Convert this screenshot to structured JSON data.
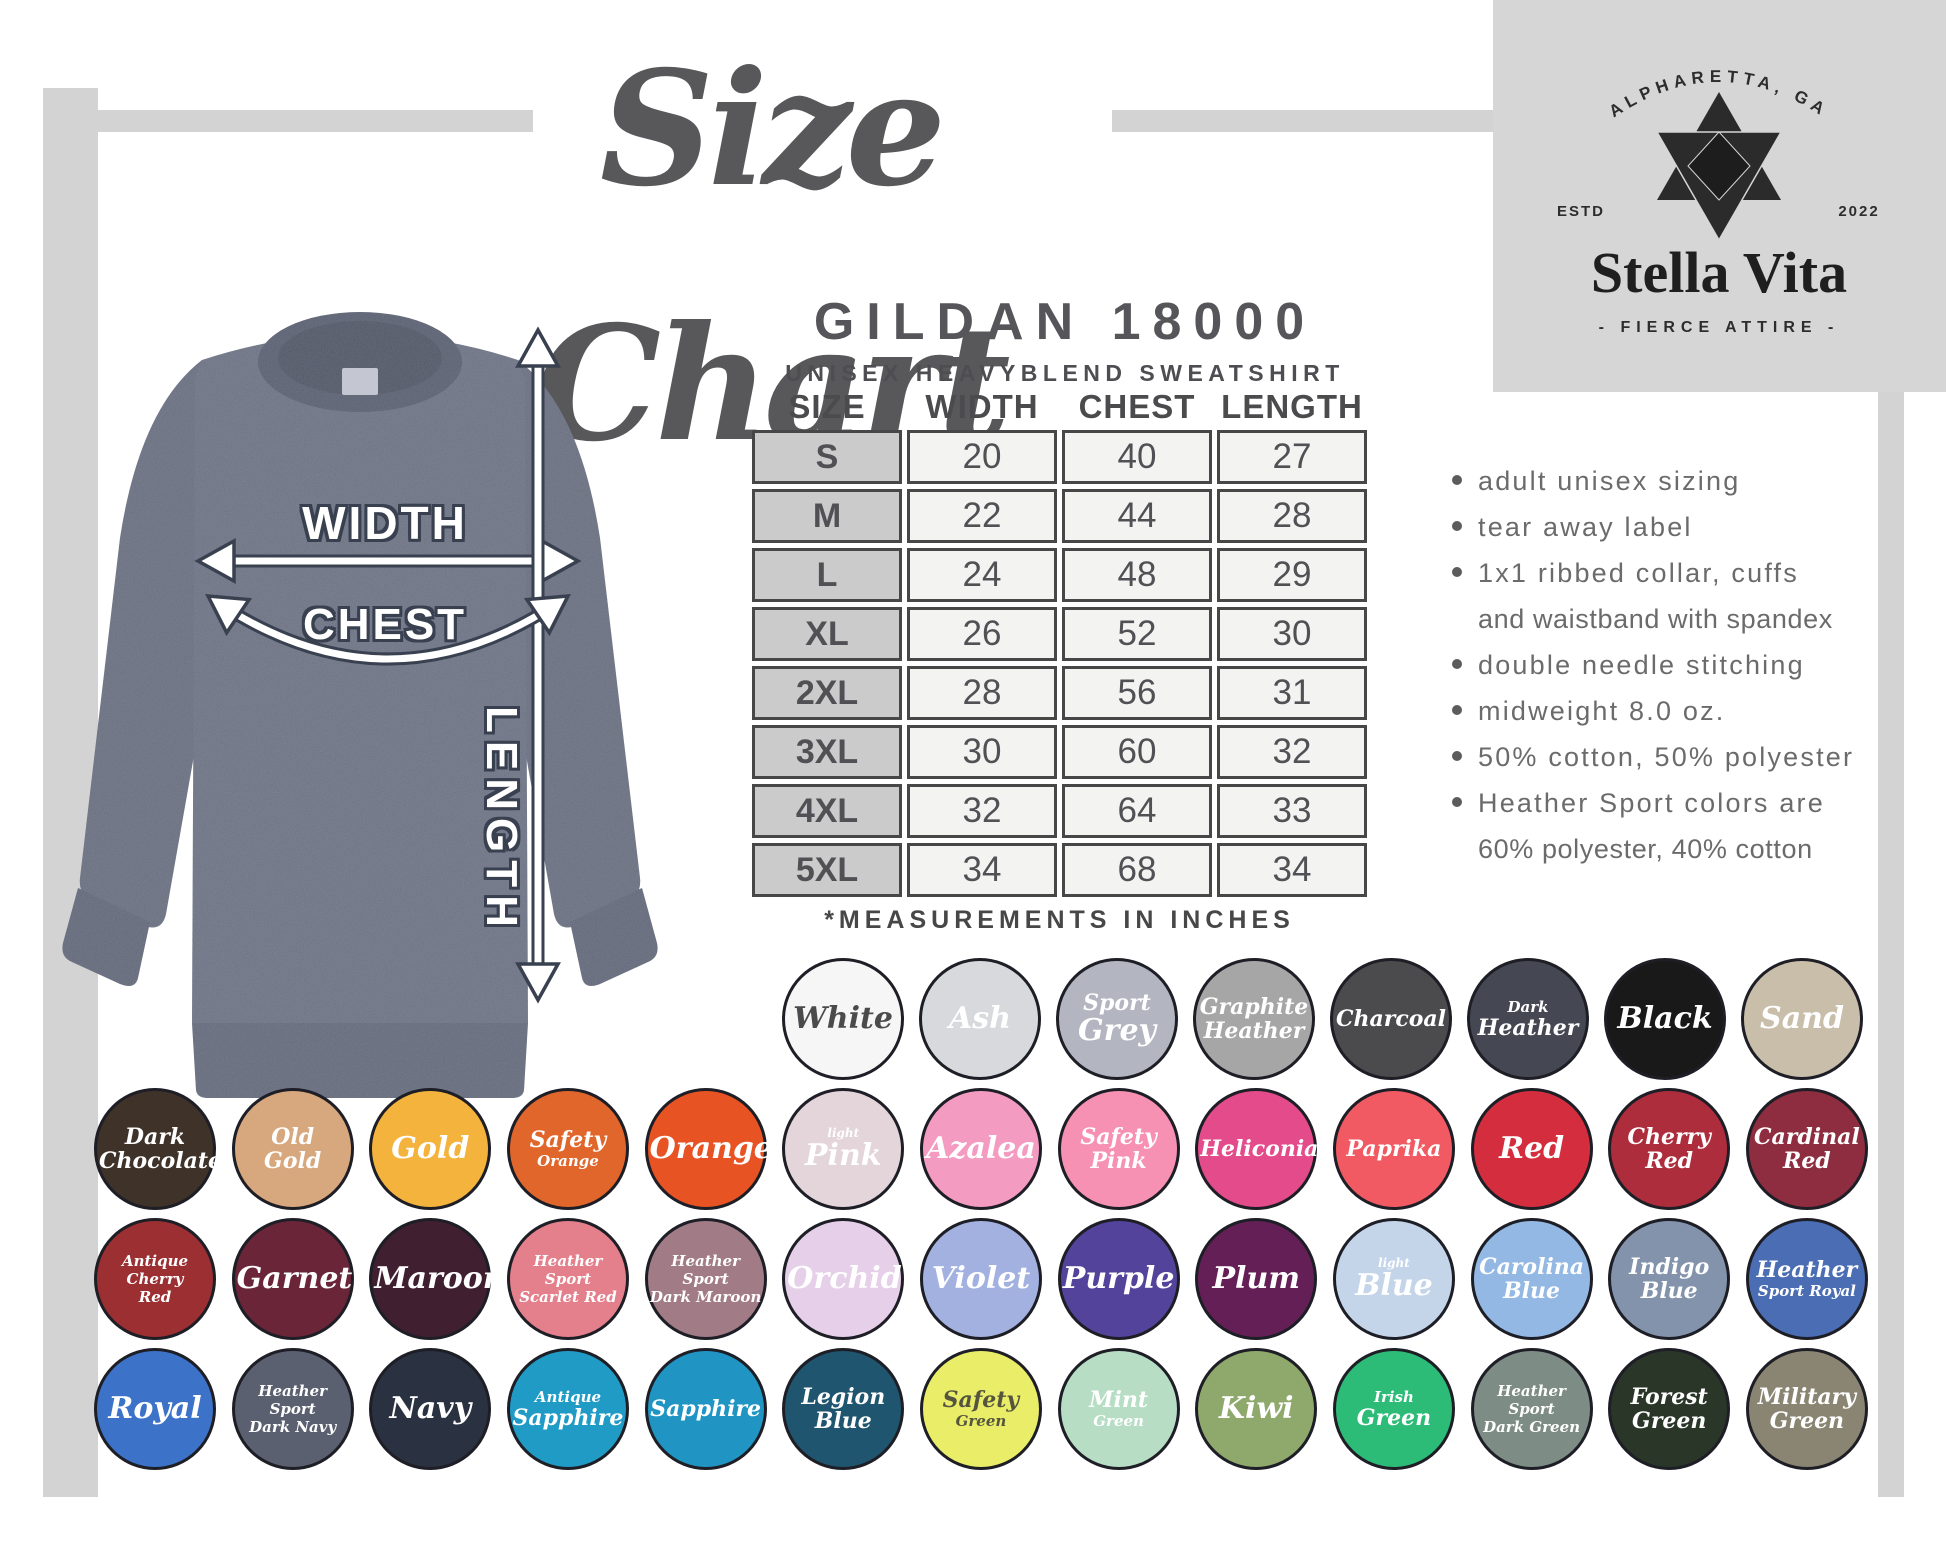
{
  "title": "Size Chart",
  "logo": {
    "location": "ALPHARETTA, GA",
    "estd_label": "ESTD",
    "estd_year": "2022",
    "brand": "Stella Vita",
    "tagline": "- FIERCE ATTIRE -"
  },
  "product": {
    "name": "GILDAN 18000",
    "description": "UNISEX HEAVYBLEND SWEATSHIRT"
  },
  "diagram": {
    "width_label": "WIDTH",
    "chest_label": "CHEST",
    "length_label": "LENGTH"
  },
  "size_table": {
    "columns": [
      "SIZE",
      "WIDTH",
      "CHEST",
      "LENGTH"
    ],
    "rows": [
      [
        "S",
        "20",
        "40",
        "27"
      ],
      [
        "M",
        "22",
        "44",
        "28"
      ],
      [
        "L",
        "24",
        "48",
        "29"
      ],
      [
        "XL",
        "26",
        "52",
        "30"
      ],
      [
        "2XL",
        "28",
        "56",
        "31"
      ],
      [
        "3XL",
        "30",
        "60",
        "32"
      ],
      [
        "4XL",
        "32",
        "64",
        "33"
      ],
      [
        "5XL",
        "34",
        "68",
        "34"
      ]
    ],
    "note": "*MEASUREMENTS IN INCHES"
  },
  "features": [
    {
      "lines": [
        "adult unisex sizing"
      ]
    },
    {
      "lines": [
        "tear away label"
      ]
    },
    {
      "lines": [
        "1x1 ribbed collar, cuffs",
        "and waistband with spandex"
      ]
    },
    {
      "lines": [
        "double needle stitching"
      ]
    },
    {
      "lines": [
        "midweight 8.0 oz."
      ]
    },
    {
      "lines": [
        "50% cotton, 50% polyester"
      ]
    },
    {
      "lines": [
        "Heather Sport colors are",
        "60% polyester, 40% cotton"
      ]
    }
  ],
  "colors": {
    "rows": [
      [
        {
          "name": "White",
          "bg": "#f6f6f6",
          "text": "#4b4b4b",
          "lines": [
            [
              "White",
              "lg"
            ]
          ]
        },
        {
          "name": "Ash",
          "bg": "#d7d9dd",
          "text": "#ffffff",
          "lines": [
            [
              "Ash",
              "lg"
            ]
          ]
        },
        {
          "name": "Sport Grey",
          "bg": "#b3b5c0",
          "text": "#ffffff",
          "lines": [
            [
              "Sport",
              "md"
            ],
            [
              "Grey",
              "lg"
            ]
          ]
        },
        {
          "name": "Graphite Heather",
          "bg": "#a6a6a6",
          "text": "#ffffff",
          "lines": [
            [
              "Graphite",
              "md"
            ],
            [
              "Heather",
              "md"
            ]
          ]
        },
        {
          "name": "Charcoal",
          "bg": "#4b4b4d",
          "text": "#ffffff",
          "lines": [
            [
              "Charcoal",
              "md"
            ]
          ]
        },
        {
          "name": "Dark Heather",
          "bg": "#454852",
          "text": "#ffffff",
          "lines": [
            [
              "Dark",
              "sm"
            ],
            [
              "Heather",
              "md"
            ]
          ]
        },
        {
          "name": "Black",
          "bg": "#191919",
          "text": "#ffffff",
          "lines": [
            [
              "Black",
              "lg"
            ]
          ]
        },
        {
          "name": "Sand",
          "bg": "#c9beaa",
          "text": "#ffffff",
          "lines": [
            [
              "Sand",
              "lg"
            ]
          ]
        }
      ],
      [
        {
          "name": "Dark Chocolate",
          "bg": "#3e3229",
          "text": "#ffffff",
          "lines": [
            [
              "Dark",
              "md"
            ],
            [
              "Chocolate",
              "md"
            ]
          ]
        },
        {
          "name": "Old Gold",
          "bg": "#d7a77d",
          "text": "#ffffff",
          "lines": [
            [
              "Old",
              "md"
            ],
            [
              "Gold",
              "md"
            ]
          ]
        },
        {
          "name": "Gold",
          "bg": "#f3b33d",
          "text": "#ffffff",
          "lines": [
            [
              "Gold",
              "lg"
            ]
          ]
        },
        {
          "name": "Safety Orange",
          "bg": "#e1662b",
          "text": "#ffffff",
          "lines": [
            [
              "Safety",
              "md"
            ],
            [
              "Orange",
              "sm"
            ]
          ]
        },
        {
          "name": "Orange",
          "bg": "#e75322",
          "text": "#ffffff",
          "lines": [
            [
              "Orange",
              "lg"
            ]
          ]
        },
        {
          "name": "Light Pink",
          "bg": "#e3d5d9",
          "text": "#ffffff",
          "lines": [
            [
              "light",
              "xs"
            ],
            [
              "Pink",
              "lg"
            ]
          ]
        },
        {
          "name": "Azalea",
          "bg": "#f49bc1",
          "text": "#ffffff",
          "lines": [
            [
              "Azalea",
              "lg"
            ]
          ]
        },
        {
          "name": "Safety Pink",
          "bg": "#f791b3",
          "text": "#ffffff",
          "lines": [
            [
              "Safety",
              "md"
            ],
            [
              "Pink",
              "md"
            ]
          ]
        },
        {
          "name": "Heliconia",
          "bg": "#e34b8b",
          "text": "#ffffff",
          "lines": [
            [
              "Heliconia",
              "md"
            ]
          ]
        },
        {
          "name": "Paprika",
          "bg": "#f15a62",
          "text": "#ffffff",
          "lines": [
            [
              "Paprika",
              "md"
            ]
          ]
        },
        {
          "name": "Red",
          "bg": "#d42e3e",
          "text": "#ffffff",
          "lines": [
            [
              "Red",
              "lg"
            ]
          ]
        },
        {
          "name": "Cherry Red",
          "bg": "#ae2d3d",
          "text": "#ffffff",
          "lines": [
            [
              "Cherry",
              "md"
            ],
            [
              "Red",
              "md"
            ]
          ]
        },
        {
          "name": "Cardinal Red",
          "bg": "#8d2d3f",
          "text": "#ffffff",
          "lines": [
            [
              "Cardinal",
              "md"
            ],
            [
              "Red",
              "md"
            ]
          ]
        }
      ],
      [
        {
          "name": "Antique Cherry Red",
          "bg": "#9b2f32",
          "text": "#ffffff",
          "lines": [
            [
              "Antique",
              "sm"
            ],
            [
              "Cherry",
              "sm"
            ],
            [
              "Red",
              "sm"
            ]
          ]
        },
        {
          "name": "Garnet",
          "bg": "#6a2538",
          "text": "#ffffff",
          "lines": [
            [
              "Garnet",
              "lg"
            ]
          ]
        },
        {
          "name": "Maroon",
          "bg": "#402030",
          "text": "#ffffff",
          "lines": [
            [
              "Maroon",
              "lg"
            ]
          ]
        },
        {
          "name": "Heather Sport Scarlet Red",
          "bg": "#e4808c",
          "text": "#ffffff",
          "lines": [
            [
              "Heather Sport",
              "sm"
            ],
            [
              "Scarlet Red",
              "sm"
            ]
          ]
        },
        {
          "name": "Heather Sport Dark Maroon",
          "bg": "#a17b86",
          "text": "#ffffff",
          "lines": [
            [
              "Heather Sport",
              "sm"
            ],
            [
              "Dark Maroon",
              "sm"
            ]
          ]
        },
        {
          "name": "Orchid",
          "bg": "#e6cfe8",
          "text": "#ffffff",
          "lines": [
            [
              "Orchid",
              "lg"
            ]
          ]
        },
        {
          "name": "Violet",
          "bg": "#a2b1df",
          "text": "#ffffff",
          "lines": [
            [
              "Violet",
              "lg"
            ]
          ]
        },
        {
          "name": "Purple",
          "bg": "#53439a",
          "text": "#ffffff",
          "lines": [
            [
              "Purple",
              "lg"
            ]
          ]
        },
        {
          "name": "Plum",
          "bg": "#642056",
          "text": "#ffffff",
          "lines": [
            [
              "Plum",
              "lg"
            ]
          ]
        },
        {
          "name": "Light Blue",
          "bg": "#c4d4e9",
          "text": "#ffffff",
          "lines": [
            [
              "light",
              "xs"
            ],
            [
              "Blue",
              "lg"
            ]
          ]
        },
        {
          "name": "Carolina Blue",
          "bg": "#93b8e3",
          "text": "#ffffff",
          "lines": [
            [
              "Carolina",
              "md"
            ],
            [
              "Blue",
              "md"
            ]
          ]
        },
        {
          "name": "Indigo Blue",
          "bg": "#8393ac",
          "text": "#ffffff",
          "lines": [
            [
              "Indigo",
              "md"
            ],
            [
              "Blue",
              "md"
            ]
          ]
        },
        {
          "name": "Heather Sport Royal",
          "bg": "#4a6db4",
          "text": "#ffffff",
          "lines": [
            [
              "Heather",
              "md"
            ],
            [
              "Sport Royal",
              "sm"
            ]
          ]
        }
      ],
      [
        {
          "name": "Royal",
          "bg": "#3c73c9",
          "text": "#ffffff",
          "lines": [
            [
              "Royal",
              "lg"
            ]
          ]
        },
        {
          "name": "Heather Sport Dark Navy",
          "bg": "#5b6070",
          "text": "#ffffff",
          "lines": [
            [
              "Heather Sport",
              "sm"
            ],
            [
              "Dark Navy",
              "sm"
            ]
          ]
        },
        {
          "name": "Navy",
          "bg": "#2a3140",
          "text": "#ffffff",
          "lines": [
            [
              "Navy",
              "lg"
            ]
          ]
        },
        {
          "name": "Antique Sapphire",
          "bg": "#1f9bc6",
          "text": "#ffffff",
          "lines": [
            [
              "Antique",
              "sm"
            ],
            [
              "Sapphire",
              "md"
            ]
          ]
        },
        {
          "name": "Sapphire",
          "bg": "#2095c4",
          "text": "#ffffff",
          "lines": [
            [
              "Sapphire",
              "md"
            ]
          ]
        },
        {
          "name": "Legion Blue",
          "bg": "#1f556e",
          "text": "#ffffff",
          "lines": [
            [
              "Legion",
              "md"
            ],
            [
              "Blue",
              "md"
            ]
          ]
        },
        {
          "name": "Safety Green",
          "bg": "#e9ed67",
          "text": "#55553f",
          "lines": [
            [
              "Safety",
              "md"
            ],
            [
              "Green",
              "sm"
            ]
          ]
        },
        {
          "name": "Mint Green",
          "bg": "#b7dec5",
          "text": "#ffffff",
          "lines": [
            [
              "Mint",
              "md"
            ],
            [
              "Green",
              "sm"
            ]
          ]
        },
        {
          "name": "Kiwi",
          "bg": "#8fa96d",
          "text": "#ffffff",
          "lines": [
            [
              "Kiwi",
              "lg"
            ]
          ]
        },
        {
          "name": "Irish Green",
          "bg": "#2cbc77",
          "text": "#ffffff",
          "lines": [
            [
              "Irish",
              "sm"
            ],
            [
              "Green",
              "md"
            ]
          ]
        },
        {
          "name": "Heather Sport Dark Green",
          "bg": "#7d8c84",
          "text": "#ffffff",
          "lines": [
            [
              "Heather Sport",
              "sm"
            ],
            [
              "Dark Green",
              "sm"
            ]
          ]
        },
        {
          "name": "Forest Green",
          "bg": "#293628",
          "text": "#ffffff",
          "lines": [
            [
              "Forest",
              "md"
            ],
            [
              "Green",
              "md"
            ]
          ]
        },
        {
          "name": "Military Green",
          "bg": "#8a8572",
          "text": "#ffffff",
          "lines": [
            [
              "Military",
              "md"
            ],
            [
              "Green",
              "md"
            ]
          ]
        }
      ]
    ]
  }
}
